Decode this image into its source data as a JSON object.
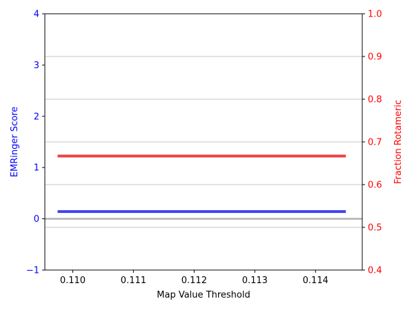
{
  "chart_data": {
    "type": "line",
    "xlabel": "Map Value Threshold",
    "ylabel_left": "EMRinger Score",
    "ylabel_right": "Fraction Rotameric",
    "xlim": [
      0.10954,
      0.11477
    ],
    "xticks": [
      0.11,
      0.111,
      0.112,
      0.113,
      0.114
    ],
    "xtick_labels": [
      "0.110",
      "0.111",
      "0.112",
      "0.113",
      "0.114"
    ],
    "ylim_left": [
      -1,
      4
    ],
    "yticks_left": [
      -1,
      0,
      1,
      2,
      3,
      4
    ],
    "ytick_labels_left": [
      "−1",
      "0",
      "1",
      "2",
      "3",
      "4"
    ],
    "ylim_right": [
      0.4,
      1.0
    ],
    "yticks_right": [
      0.4,
      0.5,
      0.6,
      0.7,
      0.8,
      0.9,
      1.0
    ],
    "ytick_labels_right": [
      "0.4",
      "0.5",
      "0.6",
      "0.7",
      "0.8",
      "0.9",
      "1.0"
    ],
    "grid": "right-axis horizontal",
    "series": [
      {
        "axis": "left",
        "color": "#4040ee",
        "x": [
          0.10975,
          0.11025,
          0.11075,
          0.11125,
          0.11175,
          0.11225,
          0.11275,
          0.11325,
          0.11375,
          0.11425,
          0.1145
        ],
        "y": [
          0.14,
          0.14,
          0.14,
          0.14,
          0.14,
          0.14,
          0.14,
          0.14,
          0.14,
          0.14,
          0.14
        ]
      },
      {
        "axis": "right",
        "color": "#ee4040",
        "x": [
          0.10975,
          0.11025,
          0.11075,
          0.11125,
          0.11175,
          0.11225,
          0.11275,
          0.11325,
          0.11375,
          0.11425,
          0.1145
        ],
        "y": [
          0.667,
          0.667,
          0.667,
          0.667,
          0.667,
          0.667,
          0.667,
          0.667,
          0.667,
          0.667,
          0.667
        ]
      }
    ],
    "reference_line": {
      "axis": "left",
      "y": 0,
      "color": "#b0b0b0"
    },
    "colors": {
      "left_axis": "#0000ff",
      "right_axis": "#ff0000",
      "grid": "#b0b0b0"
    }
  }
}
